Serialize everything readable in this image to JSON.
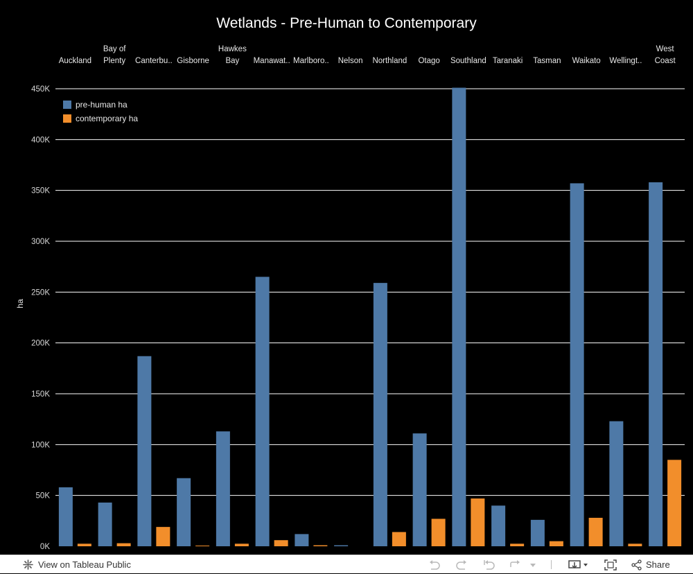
{
  "chart_data": {
    "type": "bar",
    "title": "Wetlands - Pre-Human to Contemporary",
    "categories": [
      [
        "Auckland"
      ],
      [
        "Bay of",
        "Plenty"
      ],
      [
        "Canterbu.."
      ],
      [
        "Gisborne"
      ],
      [
        "Hawkes",
        "Bay"
      ],
      [
        "Manawat.."
      ],
      [
        "Marlboro.."
      ],
      [
        "Nelson"
      ],
      [
        "Northland"
      ],
      [
        "Otago"
      ],
      [
        "Southland"
      ],
      [
        "Taranaki"
      ],
      [
        "Tasman"
      ],
      [
        "Waikato"
      ],
      [
        "Wellingt.."
      ],
      [
        "West",
        "Coast"
      ]
    ],
    "series": [
      {
        "name": "pre-human ha",
        "color": "#4e79a7",
        "values": [
          58000,
          43000,
          187000,
          67000,
          113000,
          265000,
          12000,
          1000,
          259000,
          111000,
          451000,
          40000,
          26000,
          357000,
          123000,
          358000
        ]
      },
      {
        "name": "contemporary ha",
        "color": "#f28e2b",
        "values": [
          2500,
          3000,
          19000,
          500,
          2500,
          6000,
          1000,
          0,
          14000,
          27000,
          47000,
          2500,
          5000,
          28000,
          2500,
          85000
        ]
      }
    ],
    "ylabel": "ha",
    "xlabel": "",
    "ylim": [
      0,
      450000
    ],
    "yticks": [
      0,
      50000,
      100000,
      150000,
      200000,
      250000,
      300000,
      350000,
      400000,
      450000
    ],
    "ytick_labels": [
      "0K",
      "50K",
      "100K",
      "150K",
      "200K",
      "250K",
      "300K",
      "350K",
      "400K",
      "450K"
    ],
    "grid": true,
    "legend_position": "top-left",
    "background": "#000000",
    "gridline_color": "#ffffff"
  },
  "toolbar": {
    "view_label": "View on Tableau Public",
    "share_label": "Share",
    "icons": [
      "tableau-logo-icon",
      "undo-icon",
      "redo-icon",
      "revert-icon",
      "refresh-icon",
      "download-icon",
      "fullscreen-icon",
      "share-icon"
    ]
  }
}
